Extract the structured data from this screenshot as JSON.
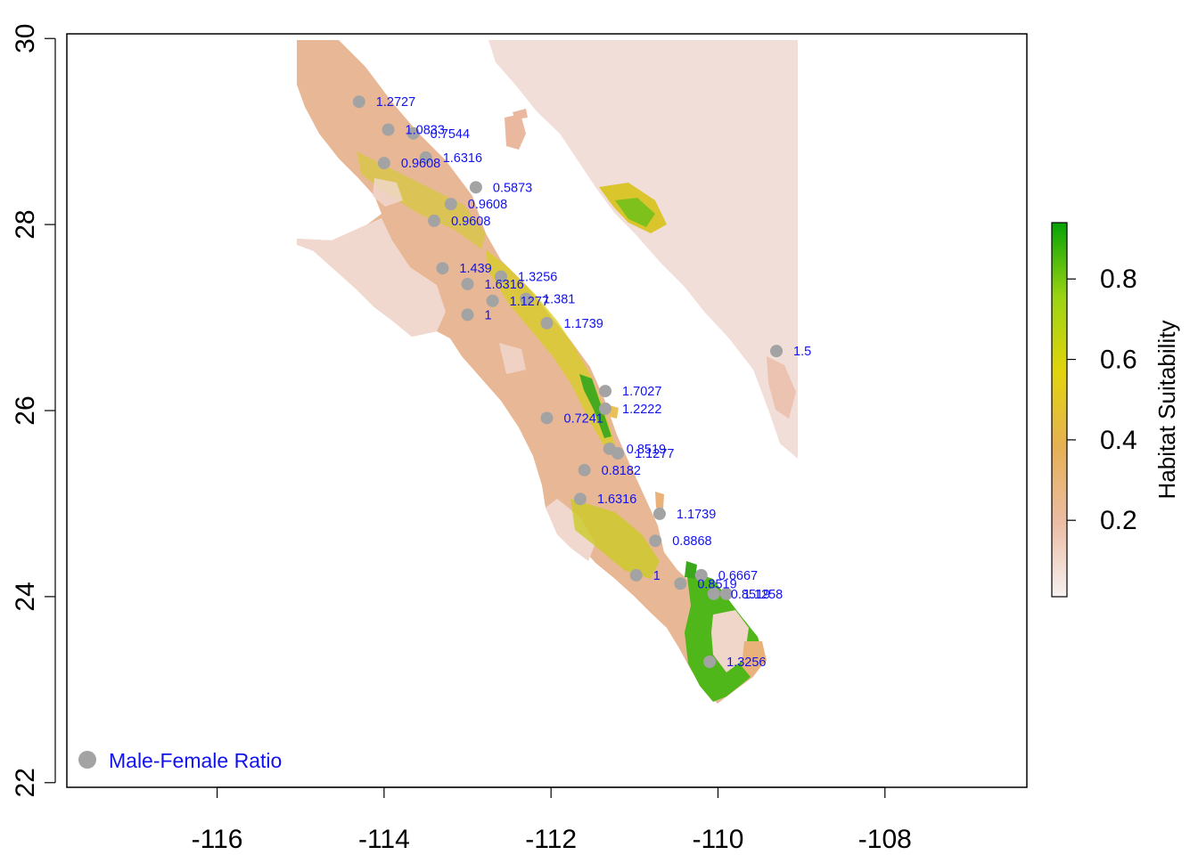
{
  "map": {
    "xlim": [
      -117.8,
      -106.3
    ],
    "ylim": [
      21.95,
      30.05
    ],
    "x_ticks": [
      {
        "value": -116,
        "label": "-116"
      },
      {
        "value": -114,
        "label": "-114"
      },
      {
        "value": -112,
        "label": "-112"
      },
      {
        "value": -110,
        "label": "-110"
      },
      {
        "value": -108,
        "label": "-108"
      }
    ],
    "y_ticks": [
      {
        "value": 22,
        "label": "22"
      },
      {
        "value": 24,
        "label": "24"
      },
      {
        "value": 26,
        "label": "26"
      },
      {
        "value": 28,
        "label": "28"
      },
      {
        "value": 30,
        "label": "30"
      }
    ],
    "point_color": "#a3a3a3",
    "label_color": "#1212ee",
    "points": [
      {
        "lon": -114.3,
        "lat": 29.32,
        "label": "1.2727"
      },
      {
        "lon": -113.95,
        "lat": 29.02,
        "label": "1.0833"
      },
      {
        "lon": -113.65,
        "lat": 28.98,
        "label": "0.7544"
      },
      {
        "lon": -113.5,
        "lat": 28.72,
        "label": "1.6316"
      },
      {
        "lon": -114.0,
        "lat": 28.66,
        "label": "0.9608"
      },
      {
        "lon": -112.9,
        "lat": 28.4,
        "label": "0.5873"
      },
      {
        "lon": -113.2,
        "lat": 28.22,
        "label": "0.9608"
      },
      {
        "lon": -113.4,
        "lat": 28.04,
        "label": "0.9608"
      },
      {
        "lon": -113.3,
        "lat": 27.53,
        "label": "1.439"
      },
      {
        "lon": -112.6,
        "lat": 27.44,
        "label": "1.3256"
      },
      {
        "lon": -113.0,
        "lat": 27.36,
        "label": "1.6316"
      },
      {
        "lon": -112.3,
        "lat": 27.2,
        "label": "1.381"
      },
      {
        "lon": -112.7,
        "lat": 27.18,
        "label": "1.1277"
      },
      {
        "lon": -113.0,
        "lat": 27.03,
        "label": "1"
      },
      {
        "lon": -112.05,
        "lat": 26.94,
        "label": "1.1739"
      },
      {
        "lon": -109.3,
        "lat": 26.64,
        "label": "1.5"
      },
      {
        "lon": -111.35,
        "lat": 26.21,
        "label": "1.7027"
      },
      {
        "lon": -111.35,
        "lat": 26.02,
        "label": "1.2222"
      },
      {
        "lon": -112.05,
        "lat": 25.92,
        "label": "0.7241"
      },
      {
        "lon": -111.3,
        "lat": 25.59,
        "label": "0.8519"
      },
      {
        "lon": -111.2,
        "lat": 25.54,
        "label": "1.1277"
      },
      {
        "lon": -111.6,
        "lat": 25.36,
        "label": "0.8182"
      },
      {
        "lon": -111.65,
        "lat": 25.05,
        "label": "1.6316"
      },
      {
        "lon": -110.7,
        "lat": 24.89,
        "label": "1.1739"
      },
      {
        "lon": -110.75,
        "lat": 24.6,
        "label": "0.8868"
      },
      {
        "lon": -110.2,
        "lat": 24.23,
        "label": "0.6667"
      },
      {
        "lon": -110.98,
        "lat": 24.23,
        "label": "1"
      },
      {
        "lon": -110.45,
        "lat": 24.14,
        "label": "0.8519"
      },
      {
        "lon": -110.05,
        "lat": 24.03,
        "label": "0.8519"
      },
      {
        "lon": -109.9,
        "lat": 24.03,
        "label": "1.1258"
      },
      {
        "lon": -110.1,
        "lat": 23.3,
        "label": "1.3256"
      }
    ],
    "legend": {
      "label": "Male-Female Ratio"
    }
  },
  "colorbar": {
    "title": "Habitat Suitability",
    "min": 0.01,
    "max": 0.94,
    "ticks": [
      {
        "value": 0.2,
        "label": "0.2"
      },
      {
        "value": 0.4,
        "label": "0.4"
      },
      {
        "value": 0.6,
        "label": "0.6"
      },
      {
        "value": 0.8,
        "label": "0.8"
      }
    ],
    "colors": [
      "#f6f1f0",
      "#ecbca4",
      "#e6b054",
      "#e2d40c",
      "#9cd412",
      "#05a305"
    ]
  }
}
